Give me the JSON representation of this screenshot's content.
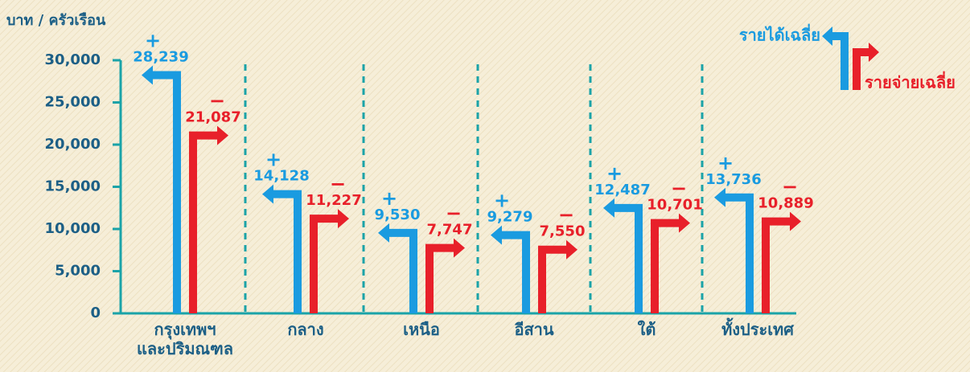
{
  "chart_data": {
    "type": "arrow-bar",
    "y_label": "บาท / ครัวเรือน",
    "categories": [
      "กรุงเทพฯ\nและปริมณฑล",
      "กลาง",
      "เหนือ",
      "อีสาน",
      "ใต้",
      "ทั้งประเทศ"
    ],
    "series": [
      {
        "name": "รายได้เฉลี่ย",
        "color": "#1a9be0",
        "sign": "+",
        "direction": "left",
        "values": [
          28239,
          14128,
          9530,
          9279,
          12487,
          13736
        ],
        "value_labels": [
          "28,239",
          "14,128",
          "9,530",
          "9,279",
          "12,487",
          "13,736"
        ]
      },
      {
        "name": "รายจ่ายเฉลี่ย",
        "color": "#e8202a",
        "sign": "−",
        "direction": "right",
        "values": [
          21087,
          11227,
          7747,
          7550,
          10701,
          10889
        ],
        "value_labels": [
          "21,087",
          "11,227",
          "7,747",
          "7,550",
          "10,701",
          "10,889"
        ]
      }
    ],
    "ylim": [
      0,
      30000
    ],
    "yticks": [
      0,
      {
        "value": 5000,
        "label": "5,000"
      },
      {
        "value": 10000,
        "label": "10,000"
      },
      {
        "value": 15000,
        "label": "15,000"
      },
      {
        "value": 20000,
        "label": "20,000"
      },
      {
        "value": 25000,
        "label": "25,000"
      },
      {
        "value": 30000,
        "label": "30,000"
      }
    ],
    "axis_color": "#1aa3a8",
    "separators": true
  }
}
